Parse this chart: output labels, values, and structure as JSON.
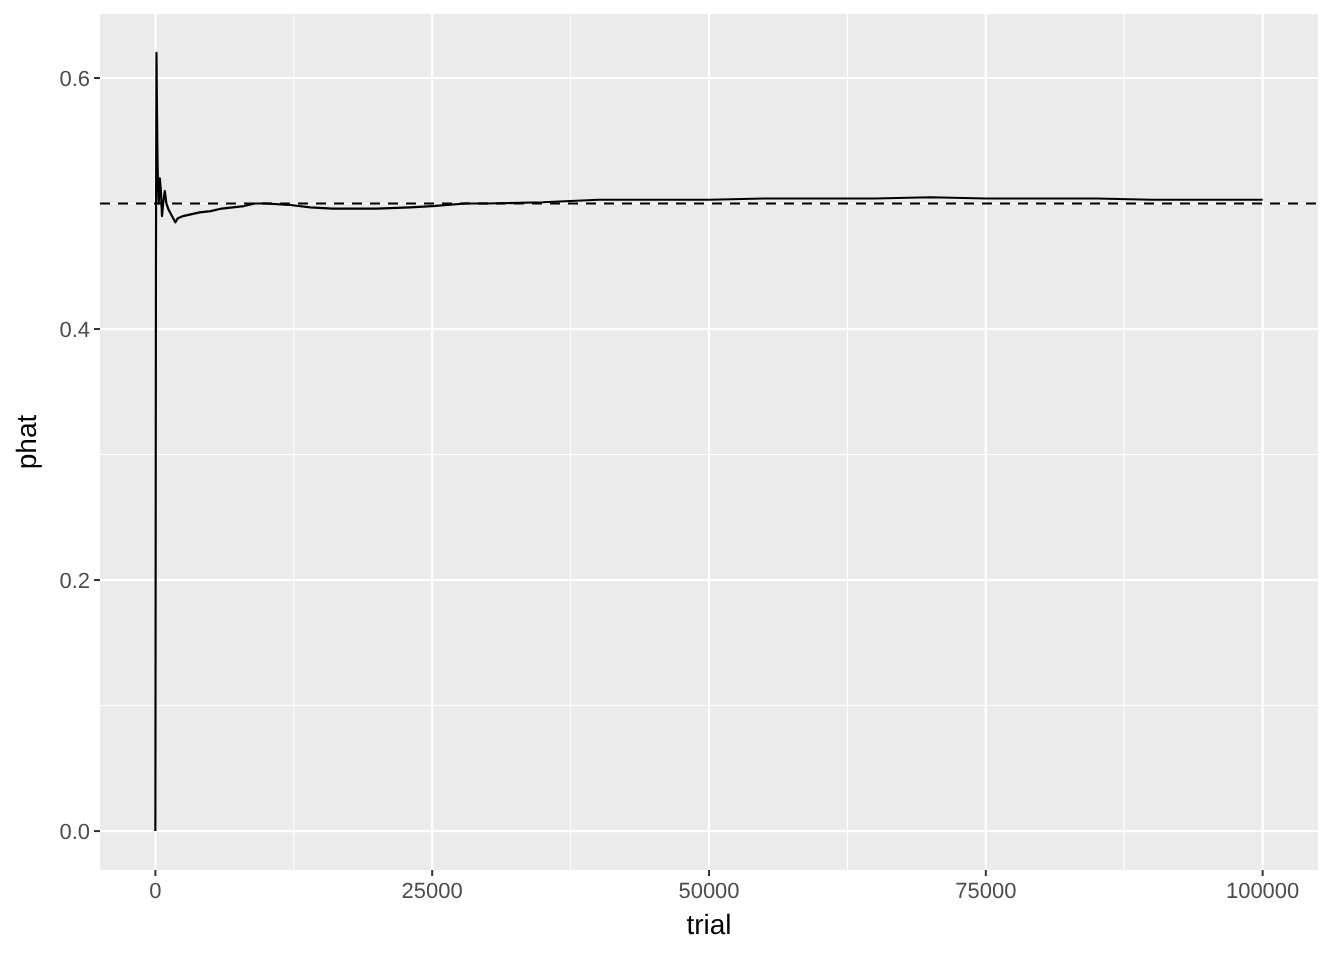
{
  "chart_data": {
    "type": "line",
    "xlabel": "trial",
    "ylabel": "phat",
    "series": [
      {
        "color": "#000000",
        "x": [
          1,
          50,
          100,
          150,
          200,
          300,
          400,
          500,
          600,
          700,
          850,
          1000,
          1200,
          1500,
          1800,
          2000,
          2500,
          3000,
          4000,
          5000,
          6000,
          7000,
          8000,
          9000,
          10000,
          12000,
          14000,
          16000,
          20000,
          23000,
          25000,
          28000,
          30000,
          35000,
          40000,
          45000,
          50000,
          55000,
          60000,
          65000,
          70000,
          75000,
          80000,
          85000,
          90000,
          95000,
          100000
        ],
        "values": [
          0,
          0.45,
          0.62,
          0.57,
          0.53,
          0.5,
          0.52,
          0.51,
          0.49,
          0.5,
          0.51,
          0.5,
          0.495,
          0.49,
          0.485,
          0.488,
          0.49,
          0.491,
          0.493,
          0.494,
          0.496,
          0.497,
          0.498,
          0.5,
          0.5,
          0.499,
          0.497,
          0.496,
          0.496,
          0.497,
          0.498,
          0.5,
          0.5,
          0.501,
          0.503,
          0.503,
          0.503,
          0.504,
          0.504,
          0.504,
          0.505,
          0.504,
          0.504,
          0.504,
          0.503,
          0.503,
          0.503
        ]
      }
    ],
    "xlim": [
      -5000,
      105000
    ],
    "xticks": [
      0,
      25000,
      50000,
      75000,
      100000
    ],
    "ylim": [
      -0.031,
      0.651
    ],
    "yticks": [
      {
        "value": 0,
        "label": "0.0"
      },
      {
        "value": 0.2,
        "label": "0.2"
      },
      {
        "value": 0.4,
        "label": "0.4"
      },
      {
        "value": 0.6,
        "label": "0.6"
      }
    ],
    "grid": true,
    "ref_lines": [
      {
        "axis": "y",
        "value": 0.5,
        "line_style": "dashed",
        "color": "#000000"
      }
    ]
  }
}
